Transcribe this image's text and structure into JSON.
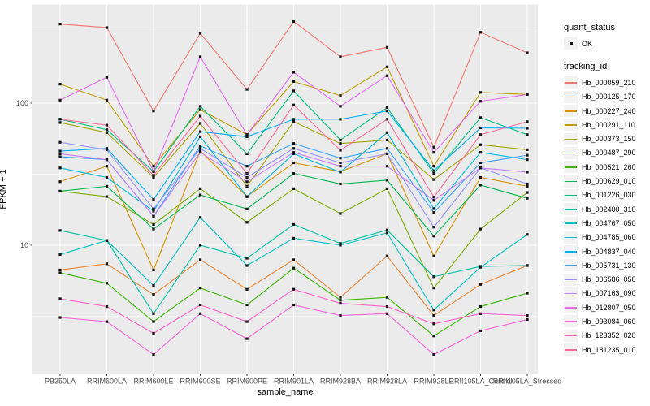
{
  "axes": {
    "x_title": "sample_name",
    "y_title": "FPKM + 1"
  },
  "legend": {
    "quant_status": {
      "title": "quant_status",
      "items": [
        {
          "label": "OK"
        }
      ]
    },
    "tracking_id": {
      "title": "tracking_id"
    }
  },
  "chart_data": {
    "type": "line",
    "title": "",
    "xlabel": "sample_name",
    "ylabel": "FPKM + 1",
    "yscale": "log10",
    "yticks": [
      10,
      100
    ],
    "ytick_labels": [
      "10",
      "100"
    ],
    "yminor": [
      3.1623,
      31.623,
      316.23
    ],
    "ylim": [
      1.25,
      500
    ],
    "grid": true,
    "legend_position": "right",
    "point_marker": {
      "shape": "square",
      "color": "#111111",
      "status": "OK"
    },
    "panel_bg": "#EBEBEB",
    "grid_color": "#FFFFFF",
    "categories": [
      "PB350LA",
      "RRIM600LA",
      "RRIM600LE",
      "RRIM600SE",
      "RRIM600PE",
      "RRIM901LA",
      "RRIM928BA",
      "RRIM928LA",
      "RRIM928LE",
      "RRII105LA_Control",
      "RRII105LA_Stressed"
    ],
    "series": [
      {
        "name": "Hb_000059_210",
        "color": "#F8766D",
        "values": [
          360,
          340,
          88,
          310,
          125,
          375,
          212,
          247,
          49,
          315,
          226
        ]
      },
      {
        "name": "Hb_000125_170",
        "color": "#EA8331",
        "values": [
          6.7,
          7.4,
          4.5,
          7.9,
          4.9,
          7.9,
          4.3,
          8.4,
          3.2,
          5.3,
          7.2
        ]
      },
      {
        "name": "Hb_000227_240",
        "color": "#D89000",
        "values": [
          28,
          36,
          6.7,
          46,
          22,
          38,
          33,
          44,
          8.4,
          30,
          26
        ]
      },
      {
        "name": "Hb_000291_110",
        "color": "#C09B00",
        "values": [
          136,
          105,
          36,
          90,
          60,
          142,
          113,
          180,
          36,
          119,
          115
        ]
      },
      {
        "name": "Hb_000373_150",
        "color": "#A3A500",
        "values": [
          73,
          62,
          30,
          72,
          26,
          74,
          52,
          55,
          29,
          51,
          47
        ]
      },
      {
        "name": "Hb_000487_290",
        "color": "#7CAE00",
        "values": [
          24,
          22,
          14,
          25,
          14.5,
          25,
          16.7,
          25,
          5.0,
          13,
          23.5
        ]
      },
      {
        "name": "Hb_000521_260",
        "color": "#39B600",
        "values": [
          6.4,
          5.4,
          2.9,
          5.0,
          3.8,
          6.9,
          4.1,
          4.3,
          2.3,
          3.7,
          4.6
        ]
      },
      {
        "name": "Hb_000629_010",
        "color": "#00BB4E",
        "values": [
          24,
          26,
          13,
          22.6,
          18,
          32,
          27,
          28.7,
          11.6,
          26.5,
          21.4
        ]
      },
      {
        "name": "Hb_001226_030",
        "color": "#00BF7D",
        "values": [
          77,
          65,
          33,
          95,
          44,
          122,
          55,
          93,
          32,
          79,
          60
        ]
      },
      {
        "name": "Hb_002400_310",
        "color": "#00C1A3",
        "values": [
          12.7,
          10.8,
          3.3,
          10.0,
          8.1,
          14,
          10.3,
          12.8,
          6.0,
          7.1,
          7.2
        ]
      },
      {
        "name": "Hb_004767_050",
        "color": "#00BFC4",
        "values": [
          8.6,
          10.8,
          5.2,
          15.7,
          7.2,
          11.2,
          10,
          12.2,
          3.5,
          7.0,
          11.9
        ]
      },
      {
        "name": "Hb_004785_060",
        "color": "#00BAE0",
        "values": [
          35,
          30,
          17.4,
          58,
          22,
          44,
          32.7,
          62,
          18.1,
          45,
          40
        ]
      },
      {
        "name": "Hb_004837_040",
        "color": "#00B0F6",
        "values": [
          46,
          48,
          21,
          63,
          58,
          77,
          77,
          88,
          33.5,
          67,
          66.5
        ]
      },
      {
        "name": "Hb_005731_130",
        "color": "#35A2FF",
        "values": [
          42,
          40,
          16,
          50,
          36,
          52,
          41,
          48,
          17,
          38,
          43
        ]
      },
      {
        "name": "Hb_006586_050",
        "color": "#9590FF",
        "values": [
          53,
          47,
          18,
          48,
          30,
          48,
          38,
          44,
          13.4,
          35,
          27
        ]
      },
      {
        "name": "Hb_007163_090",
        "color": "#C77CFF",
        "values": [
          44,
          40,
          16,
          45,
          28,
          45,
          36,
          36,
          20.7,
          35,
          32.7
        ]
      },
      {
        "name": "Hb_012807_050",
        "color": "#E76BF3",
        "values": [
          105,
          152,
          33,
          212,
          60,
          165,
          95,
          156,
          45,
          103,
          115
        ]
      },
      {
        "name": "Hb_093084_060",
        "color": "#FA62DB",
        "values": [
          3.1,
          2.9,
          1.7,
          3.3,
          2.2,
          3.8,
          3.2,
          3.3,
          1.7,
          2.5,
          3.0
        ]
      },
      {
        "name": "Hb_123352_020",
        "color": "#FF61CC",
        "values": [
          4.2,
          3.7,
          2.4,
          3.8,
          2.9,
          4.9,
          3.9,
          3.7,
          2.8,
          3.3,
          3.2
        ]
      },
      {
        "name": "Hb_181235_010",
        "color": "#FF6A98",
        "values": [
          77,
          70,
          31,
          81,
          32,
          97,
          46.6,
          77,
          21.8,
          60,
          74
        ]
      }
    ]
  }
}
